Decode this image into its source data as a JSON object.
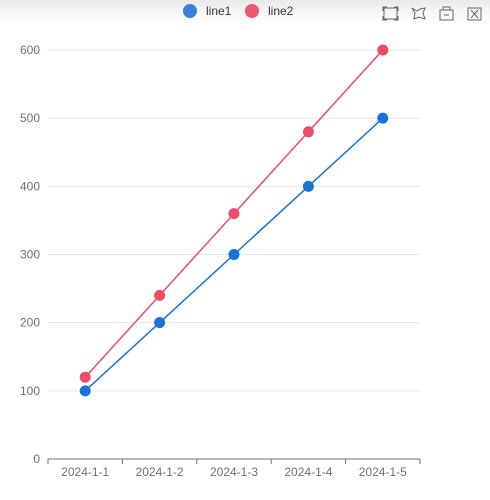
{
  "chart_data": {
    "type": "line",
    "categories": [
      "2024-1-1",
      "2024-1-2",
      "2024-1-3",
      "2024-1-4",
      "2024-1-5"
    ],
    "series": [
      {
        "name": "line1",
        "values": [
          100,
          200,
          300,
          400,
          500
        ],
        "color": "#1a73d9"
      },
      {
        "name": "line2",
        "values": [
          120,
          240,
          360,
          480,
          600
        ],
        "color": "#ee4c68"
      }
    ],
    "ylim": [
      0,
      600
    ],
    "yticks": [
      0,
      100,
      200,
      300,
      400,
      500,
      600
    ],
    "grid": true,
    "legend_position": "top-center"
  },
  "legend": {
    "items": [
      {
        "label": "line1",
        "color": "#3682d6"
      },
      {
        "label": "line2",
        "color": "#f0556f"
      }
    ]
  },
  "toolbox": {
    "icons": [
      "zoom-icon",
      "zoom-reset-icon",
      "restore-icon",
      "save-image-icon"
    ]
  }
}
